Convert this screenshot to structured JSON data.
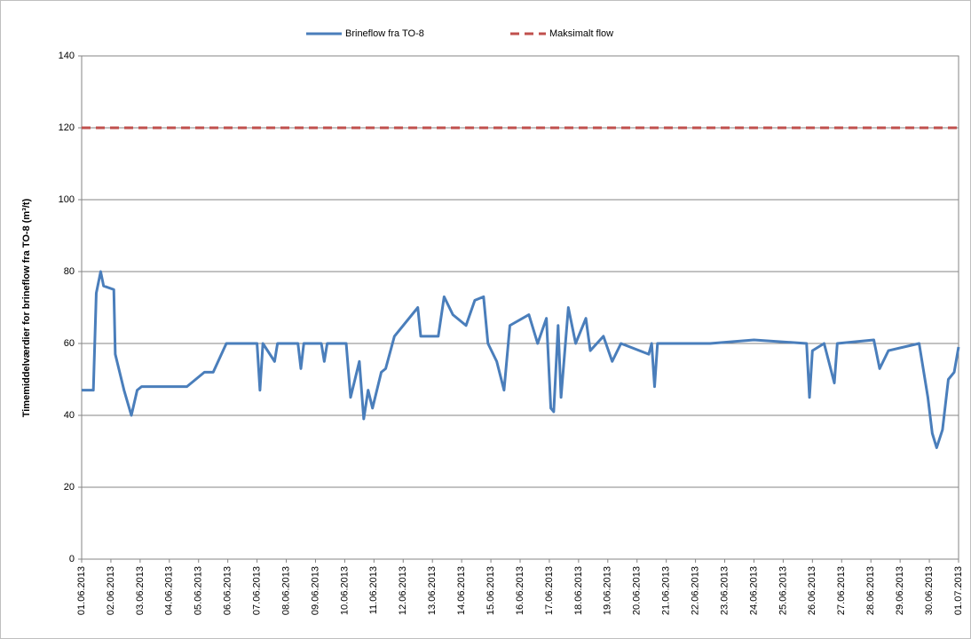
{
  "chart_data": {
    "type": "line",
    "y_label": "Timemiddelværdier for brineflow fra TO-8 (m³/t)",
    "xlim": [
      0,
      30
    ],
    "ylim": [
      0,
      140
    ],
    "yticks": [
      0,
      20,
      40,
      60,
      80,
      100,
      120,
      140
    ],
    "xticks": [
      {
        "value": 0,
        "label": "01.06.2013"
      },
      {
        "value": 1,
        "label": "02.06.2013"
      },
      {
        "value": 2,
        "label": "03.06.2013"
      },
      {
        "value": 3,
        "label": "04.06.2013"
      },
      {
        "value": 4,
        "label": "05.06.2013"
      },
      {
        "value": 5,
        "label": "06.06.2013"
      },
      {
        "value": 6,
        "label": "07.06.2013"
      },
      {
        "value": 7,
        "label": "08.06.2013"
      },
      {
        "value": 8,
        "label": "09.06.2013"
      },
      {
        "value": 9,
        "label": "10.06.2013"
      },
      {
        "value": 10,
        "label": "11.06.2013"
      },
      {
        "value": 11,
        "label": "12.06.2013"
      },
      {
        "value": 12,
        "label": "13.06.2013"
      },
      {
        "value": 13,
        "label": "14.06.2013"
      },
      {
        "value": 14,
        "label": "15.06.2013"
      },
      {
        "value": 15,
        "label": "16.06.2013"
      },
      {
        "value": 16,
        "label": "17.06.2013"
      },
      {
        "value": 17,
        "label": "18.06.2013"
      },
      {
        "value": 18,
        "label": "19.06.2013"
      },
      {
        "value": 19,
        "label": "20.06.2013"
      },
      {
        "value": 20,
        "label": "21.06.2013"
      },
      {
        "value": 21,
        "label": "22.06.2013"
      },
      {
        "value": 22,
        "label": "23.06.2013"
      },
      {
        "value": 23,
        "label": "24.06.2013"
      },
      {
        "value": 24,
        "label": "25.06.2013"
      },
      {
        "value": 25,
        "label": "26.06.2013"
      },
      {
        "value": 26,
        "label": "27.06.2013"
      },
      {
        "value": 27,
        "label": "28.06.2013"
      },
      {
        "value": 28,
        "label": "29.06.2013"
      },
      {
        "value": 29,
        "label": "30.06.2013"
      },
      {
        "value": 30,
        "label": "01.07.2013"
      }
    ],
    "grid": true,
    "legend": "top",
    "series": [
      {
        "name": "Brineflow fra TO-8",
        "color": "#4a7ebb",
        "dash": false,
        "x": [
          0,
          0.4,
          0.5,
          0.65,
          0.75,
          1.1,
          1.15,
          1.45,
          1.7,
          1.9,
          2.05,
          2.5,
          3.0,
          3.6,
          3.9,
          4.2,
          4.5,
          4.95,
          5.5,
          6.0,
          6.1,
          6.2,
          6.6,
          6.7,
          7.4,
          7.5,
          7.6,
          8.2,
          8.3,
          8.4,
          9.05,
          9.2,
          9.5,
          9.65,
          9.8,
          9.95,
          10.25,
          10.4,
          10.7,
          11.5,
          11.6,
          12.2,
          12.4,
          12.7,
          13.15,
          13.45,
          13.75,
          13.9,
          14.2,
          14.45,
          14.65,
          15.3,
          15.6,
          15.9,
          16.05,
          16.15,
          16.3,
          16.4,
          16.65,
          16.9,
          17.25,
          17.4,
          17.85,
          18.15,
          18.45,
          19.4,
          19.5,
          19.6,
          19.7,
          21.5,
          23.0,
          24.8,
          24.9,
          25.0,
          25.4,
          25.75,
          25.85,
          27.1,
          27.3,
          27.6,
          28.65,
          28.95,
          29.1,
          29.25,
          29.45,
          29.65,
          29.85,
          30
        ],
        "values": [
          47,
          47,
          74,
          80,
          76,
          75,
          57,
          47,
          40,
          47,
          48,
          48,
          48,
          48,
          50,
          52,
          52,
          60,
          60,
          60,
          47,
          60,
          55,
          60,
          60,
          53,
          60,
          60,
          55,
          60,
          60,
          45,
          55,
          39,
          47,
          42,
          52,
          53,
          62,
          70,
          62,
          62,
          73,
          68,
          65,
          72,
          73,
          60,
          55,
          47,
          65,
          68,
          60,
          67,
          42,
          41,
          65,
          45,
          70,
          60,
          67,
          58,
          62,
          55,
          60,
          57,
          60,
          48,
          60,
          60,
          61,
          60,
          45,
          58,
          60,
          49,
          60,
          61,
          53,
          58,
          60,
          45,
          35,
          31,
          36,
          50,
          52,
          59
        ]
      },
      {
        "name": "Maksimalt flow",
        "color": "#c0504d",
        "dash": true,
        "x": [
          0,
          30
        ],
        "values": [
          120,
          120
        ]
      }
    ]
  }
}
